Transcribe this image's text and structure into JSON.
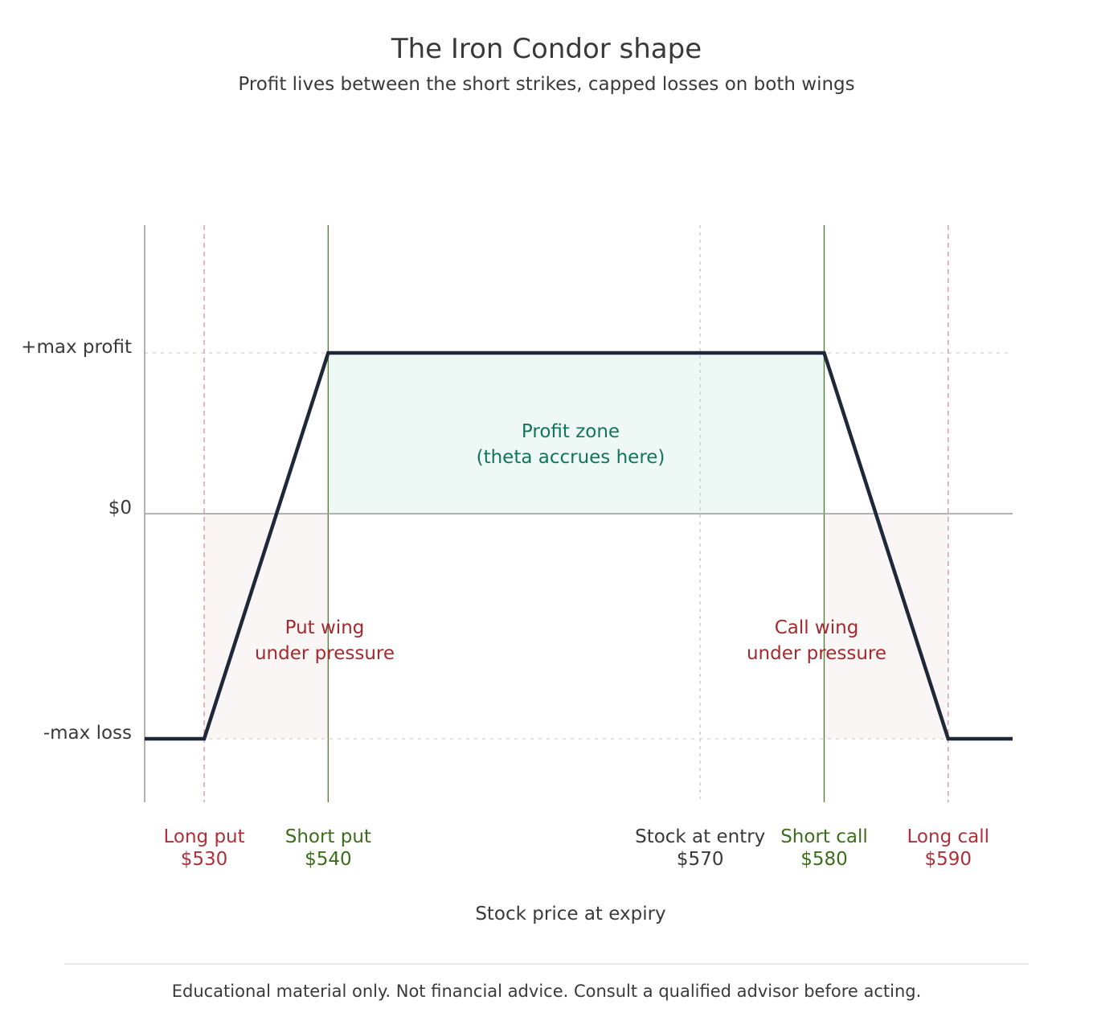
{
  "chart_data": {
    "type": "line",
    "title": "The Iron Condor shape",
    "subtitle": "Profit lives between the short strikes, capped losses on both wings",
    "xlabel": "Stock price at expiry",
    "ylabel": "",
    "series": [
      {
        "points": [
          {
            "x": 525.2,
            "y": "-max loss"
          },
          {
            "x": 530,
            "y": "-max loss"
          },
          {
            "x": 540,
            "y": "+max profit"
          },
          {
            "x": 580,
            "y": "+max profit"
          },
          {
            "x": 590,
            "y": "-max loss"
          },
          {
            "x": 595.2,
            "y": "-max loss"
          }
        ]
      }
    ],
    "y_ticks": [
      "+max profit",
      "$0",
      "-max loss"
    ],
    "strikes": [
      {
        "role": "long-put",
        "label": "Long put",
        "price_label": "$530",
        "x": 530,
        "style": "dashed",
        "color": "#b0303a"
      },
      {
        "role": "short-put",
        "label": "Short put",
        "price_label": "$540",
        "x": 540,
        "style": "solid",
        "color": "#3b6e1b"
      },
      {
        "role": "entry",
        "label": "Stock at entry",
        "price_label": "$570",
        "x": 570,
        "style": "dotted",
        "color": "#3a3a3a"
      },
      {
        "role": "short-call",
        "label": "Short call",
        "price_label": "$580",
        "x": 580,
        "style": "solid",
        "color": "#3b6e1b"
      },
      {
        "role": "long-call",
        "label": "Long call",
        "price_label": "$590",
        "x": 590,
        "style": "dashed",
        "color": "#b0303a"
      }
    ],
    "zones": [
      {
        "name": "profit",
        "lines": [
          "Profit zone",
          "(theta accrues here)"
        ],
        "x_range": [
          540,
          580
        ],
        "y_range": [
          "$0",
          "+max profit"
        ],
        "color": "#11755a"
      },
      {
        "name": "put-wing",
        "lines": [
          "Put wing",
          "under pressure"
        ],
        "x_range": [
          530,
          540
        ],
        "y_range": [
          "-max loss",
          "$0"
        ],
        "color": "#a32a2e"
      },
      {
        "name": "call-wing",
        "lines": [
          "Call wing",
          "under pressure"
        ],
        "x_range": [
          580,
          590
        ],
        "y_range": [
          "-max loss",
          "$0"
        ],
        "color": "#a32a2e"
      }
    ]
  },
  "footer": "Educational material only. Not financial advice. Consult a qualified advisor before acting.",
  "colors": {
    "payoff_line": "#1f2838",
    "profit_fill": "#eef8f4",
    "loss_fill": "#fbf6f6",
    "axis": "#9a9a9a",
    "text": "#3a3a3a"
  }
}
